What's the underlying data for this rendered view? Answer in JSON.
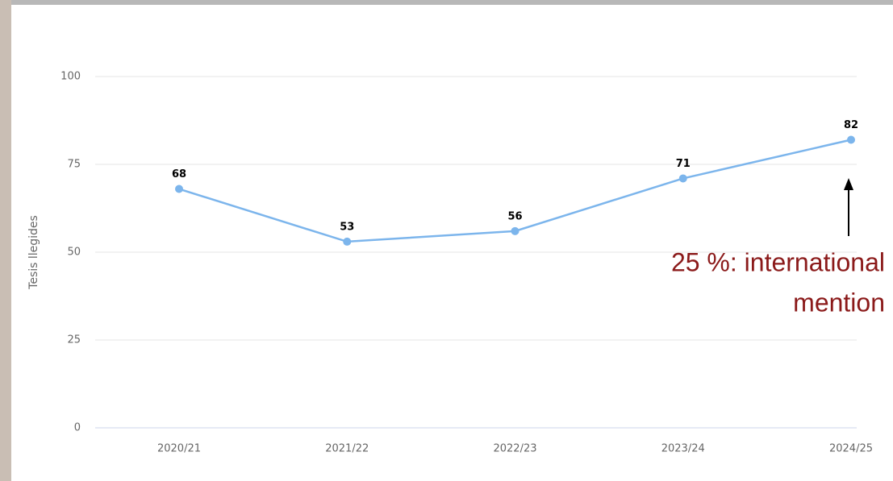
{
  "chart_data": {
    "type": "line",
    "y_label": "Tesis llegides",
    "categories": [
      "2020/21",
      "2021/22",
      "2022/23",
      "2023/24",
      "2024/25"
    ],
    "series": [
      {
        "name": "Tesis llegides",
        "color": "#7cb5ec",
        "values": [
          68,
          53,
          56,
          71,
          82
        ]
      }
    ],
    "ylim": [
      0,
      100
    ],
    "yticks": [
      0,
      25,
      50,
      75,
      100
    ],
    "grid": true,
    "annotation": [
      "25 %: international",
      "mention"
    ]
  }
}
